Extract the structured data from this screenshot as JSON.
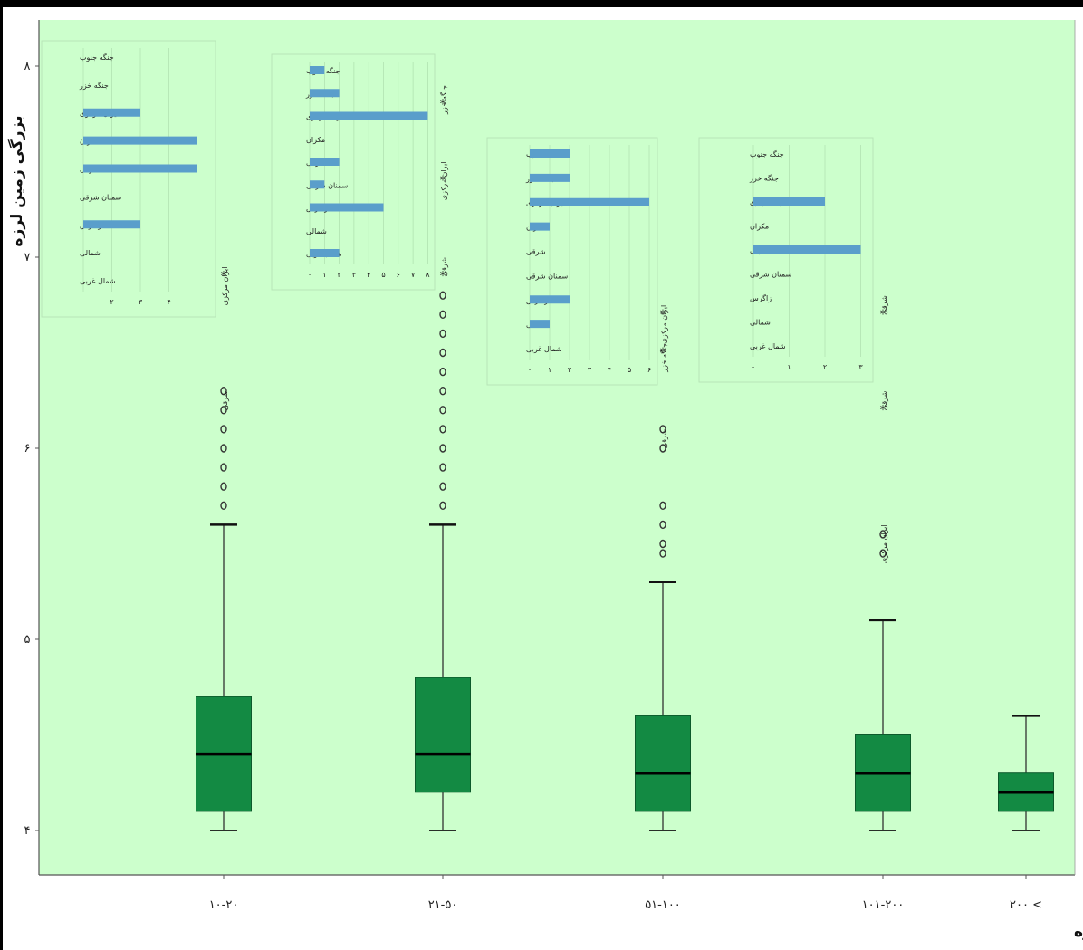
{
  "chart_data": [
    {
      "type": "box",
      "title": "",
      "xlabel": "عمق کانونی زمین لرزه",
      "ylabel": "بزرگی زمین لرزه",
      "ylim": [
        3.9,
        8.2
      ],
      "yticks": [
        4,
        5,
        6,
        7,
        8
      ],
      "ytick_labels": [
        "۴",
        "۵",
        "۶",
        "۷",
        "۸"
      ],
      "categories": [
        "۱۰-۲۰",
        "۲۱-۵۰",
        "۵۱-۱۰۰",
        "۱۰۱-۲۰۰",
        "۲۰۰ <"
      ],
      "boxes": [
        {
          "whisker_low": 4.0,
          "q1": 4.1,
          "median": 4.4,
          "q3": 4.7,
          "whisker_high": 5.6
        },
        {
          "whisker_low": 4.0,
          "q1": 4.2,
          "median": 4.4,
          "q3": 4.8,
          "whisker_high": 5.6
        },
        {
          "whisker_low": 4.0,
          "q1": 4.1,
          "median": 4.3,
          "q3": 4.6,
          "whisker_high": 5.3
        },
        {
          "whisker_low": 4.0,
          "q1": 4.1,
          "median": 4.3,
          "q3": 4.5,
          "whisker_high": 5.1
        },
        {
          "whisker_low": 4.0,
          "q1": 4.1,
          "median": 4.2,
          "q3": 4.3,
          "whisker_high": 4.6
        }
      ],
      "outliers": [
        [
          5.7,
          5.8,
          5.9,
          6.0,
          6.1,
          6.2,
          6.3
        ],
        [
          5.7,
          5.8,
          5.9,
          6.0,
          6.1,
          6.2,
          6.3,
          6.4,
          6.5,
          6.6,
          6.7,
          6.8
        ],
        [
          5.45,
          5.5,
          5.6,
          5.7,
          6.0,
          6.1
        ],
        [
          5.45,
          5.55
        ]
      ],
      "star_outliers": [
        {
          "category": 0,
          "value": 6.9
        },
        {
          "category": 1,
          "value": 7.8
        },
        {
          "category": 1,
          "value": 7.4
        },
        {
          "category": 1,
          "value": 6.9
        },
        {
          "category": 2,
          "value": 6.7
        },
        {
          "category": 2,
          "value": 6.5
        },
        {
          "category": 3,
          "value": 6.7
        },
        {
          "category": 3,
          "value": 6.2
        }
      ],
      "annotations": [
        {
          "category": 0,
          "value": 6.3,
          "text": "شرقی"
        },
        {
          "category": 0,
          "value": 6.95,
          "text": "ایران مرکزی"
        },
        {
          "category": 1,
          "value": 7.9,
          "text": "جنگه خزر"
        },
        {
          "category": 1,
          "value": 7.5,
          "text": "ایران مرکزی"
        },
        {
          "category": 1,
          "value": 7.0,
          "text": "شرقی"
        },
        {
          "category": 2,
          "value": 6.75,
          "text": "ایران مرکزی"
        },
        {
          "category": 2,
          "value": 6.55,
          "text": "جنگه خزر"
        },
        {
          "category": 2,
          "value": 6.1,
          "text": "شرقی"
        },
        {
          "category": 3,
          "value": 6.8,
          "text": "شرقی"
        },
        {
          "category": 3,
          "value": 6.3,
          "text": "شرقی"
        },
        {
          "category": 3,
          "value": 5.6,
          "text": "ایران مرکزی"
        }
      ]
    },
    {
      "type": "bar",
      "orientation": "horizontal",
      "categories": [
        "جنگه جنوب",
        "جنگه خزر",
        "ایران مرکزی",
        "مکران",
        "شرقی",
        "سمنان شرقی",
        "زاگرس",
        "شمالی",
        "شمال غربی"
      ],
      "values": [
        0,
        0,
        2,
        4,
        4,
        0,
        2,
        0,
        0
      ],
      "xticks": [
        "۰",
        "۲",
        "۳",
        "۴"
      ]
    },
    {
      "type": "bar",
      "orientation": "horizontal",
      "categories": [
        "جنگه جنوب",
        "جنگه خزر",
        "ایران مرکزی",
        "مکران",
        "شرقی",
        "سمنان شرقی",
        "زاگرس",
        "شمالی",
        "شمال غربی"
      ],
      "values": [
        1,
        2,
        8,
        0,
        2,
        1,
        5,
        0,
        2
      ],
      "xticks": [
        "۰",
        "۱",
        "۲",
        "۳",
        "۴",
        "۵",
        "۶",
        "۷",
        "۸"
      ]
    },
    {
      "type": "bar",
      "orientation": "horizontal",
      "categories": [
        "جنگه جنوب",
        "جنگه خزر",
        "ایران مرکزی",
        "مکران",
        "شرقی",
        "سمنان شرقی",
        "زاگرس",
        "شمالی",
        "شمال غربی"
      ],
      "values": [
        2,
        2,
        6,
        1,
        0,
        0,
        2,
        1,
        0
      ],
      "xticks": [
        "۰",
        "۱",
        "۲",
        "۳",
        "۴",
        "۵",
        "۶"
      ]
    },
    {
      "type": "bar",
      "orientation": "horizontal",
      "categories": [
        "جنگه جنوب",
        "جنگه خزر",
        "ایران مرکزی",
        "مکران",
        "شرقی",
        "سمنان شرقی",
        "زاگرس",
        "شمالی",
        "شمال غربی"
      ],
      "values": [
        0,
        0,
        2,
        0,
        3,
        0,
        0,
        0,
        0
      ],
      "xticks": [
        "۰",
        "۱",
        "۲",
        "۳"
      ]
    }
  ],
  "colors": {
    "panel_background": "#ccffcc",
    "box_fill": "#138a43",
    "bar_fill": "#5a9ecb",
    "axis": "#555555"
  }
}
